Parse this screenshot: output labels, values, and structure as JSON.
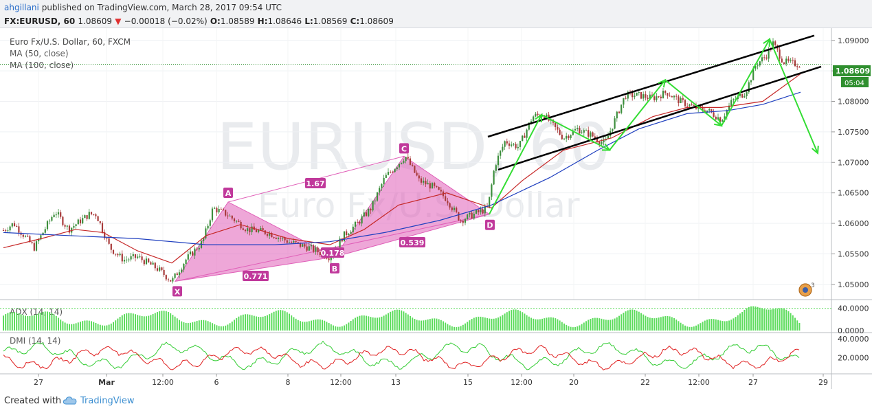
{
  "header": {
    "user": "ahgillani",
    "published": "published on TradingView.com, March 28, 2017 09:54 UTC",
    "symbol": "FX:EURUSD, 60",
    "last": "1.08609",
    "arrow": "▼",
    "change": "−0.00018 (−0.02%)",
    "o_label": "O:",
    "o_val": "1.08589",
    "h_label": "H:",
    "h_val": "1.08646",
    "l_label": "L:",
    "l_val": "1.08569",
    "c_label": "C:",
    "c_val": "1.08609"
  },
  "legend": {
    "title": "Euro Fx/U.S. Dollar, 60, FXCM",
    "ma50": "MA (50, close)",
    "ma100": "MA (100, close)"
  },
  "watermark": {
    "symbol": "EURUSD, 60",
    "name": "Euro Fx/U.S. Dollar"
  },
  "price_badge": {
    "price": "1.08609",
    "countdown": "05:04"
  },
  "panes": {
    "adx": "ADX (14, 14)",
    "dmi": "DMI (14, 14)"
  },
  "footer": {
    "created": "Created with",
    "brand": "TradingView"
  },
  "colors": {
    "candle_up": "#3c8e3c",
    "candle_down": "#a83a3a",
    "ma50": "#c62828",
    "ma100": "#1f3fbf",
    "pattern": "#e05fb8",
    "pattern_label": "#c0399b",
    "green_arrow": "#33dd33",
    "channel": "#000000",
    "adx": "#5ddc5d",
    "dmi_plus": "#33cc33",
    "dmi_minus": "#e02020",
    "price_badge": "#2f8f2f"
  },
  "chart_data": {
    "type": "candlestick",
    "symbol": "EURUSD",
    "timeframe": "60",
    "ylim": [
      1.0475,
      1.092
    ],
    "y_ticks": [
      "1.09000",
      "1.08500",
      "1.08000",
      "1.07500",
      "1.07000",
      "1.06500",
      "1.06000",
      "1.05500",
      "1.05000"
    ],
    "x_ticks": [
      "27",
      "Mar",
      "12:00",
      "6",
      "8",
      "12:00",
      "13",
      "15",
      "12:00",
      "20",
      "22",
      "12:00",
      "27",
      "29"
    ],
    "path": [
      [
        0,
        1.0585
      ],
      [
        20,
        1.06
      ],
      [
        50,
        1.056
      ],
      [
        80,
        1.062
      ],
      [
        100,
        1.059
      ],
      [
        130,
        1.0615
      ],
      [
        140,
        1.0615
      ],
      [
        160,
        1.056
      ],
      [
        180,
        1.054
      ],
      [
        200,
        1.0545
      ],
      [
        230,
        1.0525
      ],
      [
        250,
        1.0505
      ],
      [
        270,
        1.054
      ],
      [
        295,
        1.057
      ],
      [
        310,
        1.0625
      ],
      [
        330,
        1.0615
      ],
      [
        360,
        1.059
      ],
      [
        390,
        1.0585
      ],
      [
        420,
        1.057
      ],
      [
        450,
        1.056
      ],
      [
        480,
        1.0545
      ],
      [
        500,
        1.058
      ],
      [
        520,
        1.06
      ],
      [
        540,
        1.0625
      ],
      [
        560,
        1.0675
      ],
      [
        590,
        1.071
      ],
      [
        610,
        1.067
      ],
      [
        630,
        1.066
      ],
      [
        650,
        1.064
      ],
      [
        670,
        1.0605
      ],
      [
        690,
        1.0615
      ],
      [
        710,
        1.0625
      ],
      [
        720,
        1.0695
      ],
      [
        735,
        1.0735
      ],
      [
        755,
        1.0725
      ],
      [
        775,
        1.0775
      ],
      [
        790,
        1.078
      ],
      [
        805,
        1.076
      ],
      [
        820,
        1.074
      ],
      [
        840,
        1.0755
      ],
      [
        860,
        1.0745
      ],
      [
        880,
        1.073
      ],
      [
        895,
        1.077
      ],
      [
        910,
        1.081
      ],
      [
        930,
        1.081
      ],
      [
        950,
        1.0805
      ],
      [
        970,
        1.0815
      ],
      [
        990,
        1.08
      ],
      [
        1010,
        1.079
      ],
      [
        1030,
        1.0785
      ],
      [
        1050,
        1.077
      ],
      [
        1065,
        1.08
      ],
      [
        1085,
        1.0815
      ],
      [
        1100,
        1.086
      ],
      [
        1115,
        1.0875
      ],
      [
        1125,
        1.0895
      ],
      [
        1140,
        1.0865
      ],
      [
        1165,
        1.086
      ]
    ],
    "ma50": [
      [
        5,
        1.056
      ],
      [
        60,
        1.0575
      ],
      [
        110,
        1.059
      ],
      [
        150,
        1.0585
      ],
      [
        200,
        1.0555
      ],
      [
        250,
        1.0535
      ],
      [
        300,
        1.058
      ],
      [
        350,
        1.0598
      ],
      [
        420,
        1.0575
      ],
      [
        480,
        1.0565
      ],
      [
        530,
        1.059
      ],
      [
        580,
        1.063
      ],
      [
        650,
        1.065
      ],
      [
        715,
        1.0625
      ],
      [
        760,
        1.067
      ],
      [
        820,
        1.072
      ],
      [
        890,
        1.074
      ],
      [
        950,
        1.0775
      ],
      [
        1000,
        1.079
      ],
      [
        1050,
        1.079
      ],
      [
        1110,
        1.08
      ],
      [
        1165,
        1.0845
      ]
    ],
    "ma100": [
      [
        5,
        1.0585
      ],
      [
        100,
        1.058
      ],
      [
        200,
        1.0575
      ],
      [
        300,
        1.0565
      ],
      [
        400,
        1.0565
      ],
      [
        480,
        1.057
      ],
      [
        560,
        1.0585
      ],
      [
        640,
        1.0605
      ],
      [
        715,
        1.063
      ],
      [
        800,
        1.0675
      ],
      [
        870,
        1.072
      ],
      [
        930,
        1.0755
      ],
      [
        1000,
        1.078
      ],
      [
        1060,
        1.0785
      ],
      [
        1110,
        1.0795
      ],
      [
        1165,
        1.0815
      ]
    ],
    "pattern": {
      "points": {
        "X": [
          255,
          1.0505
        ],
        "A": [
          332,
          1.0635
        ],
        "B": [
          487,
          1.0545
        ],
        "C": [
          588,
          1.071
        ],
        "D": [
          712,
          1.0615
        ]
      },
      "ratios": {
        "XA_XC": "1.67",
        "AB": "0.178",
        "XB": "0.771",
        "BD": "0.539"
      },
      "labels": [
        "X",
        "A",
        "B",
        "C",
        "D"
      ]
    },
    "channel": [
      {
        "x1": 710,
        "y1": 1.0742,
        "x2": 1185,
        "y2": 1.0908
      },
      {
        "x1": 725,
        "y1": 1.0688,
        "x2": 1195,
        "y2": 1.0857
      }
    ],
    "projection": [
      [
        712,
        1.0615
      ],
      [
        788,
        1.0778
      ],
      [
        887,
        1.072
      ],
      [
        968,
        1.0835
      ],
      [
        1050,
        1.076
      ],
      [
        1120,
        1.0902
      ],
      [
        1190,
        1.0715
      ]
    ],
    "adx": {
      "yticks": [
        "40.0000",
        "0.0000"
      ]
    },
    "dmi": {
      "yticks": [
        "40.0000",
        "20.0000"
      ]
    }
  }
}
